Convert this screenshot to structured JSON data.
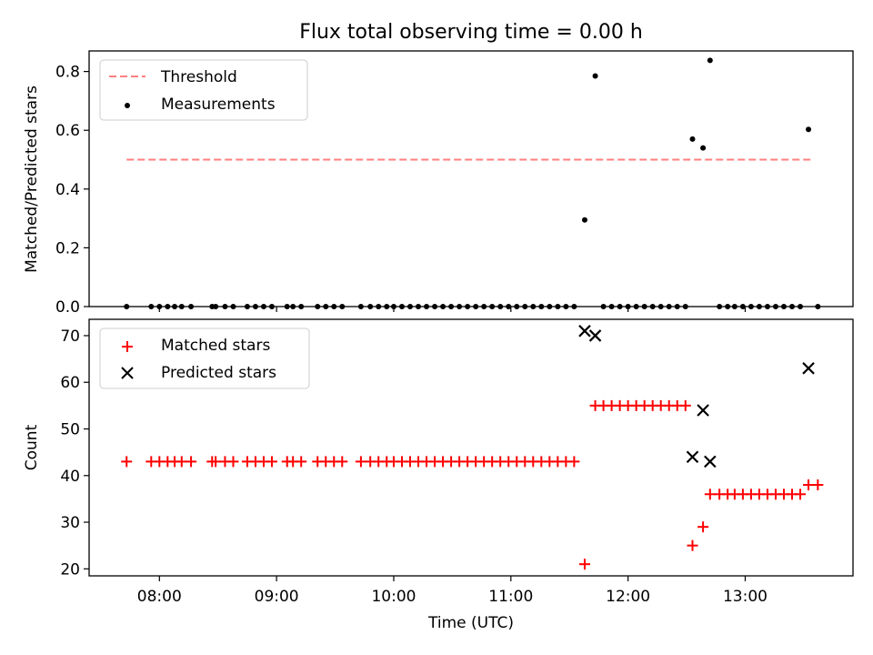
{
  "chart_data": [
    {
      "type": "scatter",
      "title": "Flux total observing time = 0.00 h",
      "xlabel": "",
      "ylabel": "Matched/Predicted stars",
      "ylim": [
        0,
        0.87
      ],
      "yticks": [
        0.0,
        0.2,
        0.4,
        0.6,
        0.8
      ],
      "ytick_labels": [
        "0.0",
        "0.2",
        "0.4",
        "0.6",
        "0.8"
      ],
      "legend_position": "top-left",
      "threshold": {
        "name": "Threshold",
        "value": 0.5,
        "x_start": 7.72,
        "x_end": 13.58,
        "color": "#ff7f7f"
      },
      "series": [
        {
          "name": "Measurements",
          "color": "#000000",
          "x": [
            7.72,
            7.93,
            8.0,
            8.07,
            8.13,
            8.19,
            8.27,
            8.45,
            8.48,
            8.56,
            8.63,
            8.75,
            8.82,
            8.89,
            8.96,
            9.09,
            9.14,
            9.21,
            9.35,
            9.42,
            9.49,
            9.56,
            9.72,
            9.8,
            9.87,
            9.94,
            10.0,
            10.07,
            10.14,
            10.21,
            10.28,
            10.35,
            10.42,
            10.49,
            10.56,
            10.63,
            10.7,
            10.77,
            10.84,
            10.91,
            10.98,
            11.05,
            11.12,
            11.19,
            11.26,
            11.33,
            11.4,
            11.47,
            11.54,
            11.63,
            11.72,
            11.79,
            11.86,
            11.93,
            12.0,
            12.07,
            12.14,
            12.21,
            12.28,
            12.35,
            12.42,
            12.49,
            12.55,
            12.64,
            12.7,
            12.78,
            12.85,
            12.91,
            12.98,
            13.05,
            13.12,
            13.19,
            13.26,
            13.33,
            13.4,
            13.47,
            13.54,
            13.62
          ],
          "y": [
            0,
            0,
            0,
            0,
            0,
            0,
            0,
            0,
            0,
            0,
            0,
            0,
            0,
            0,
            0,
            0,
            0,
            0,
            0,
            0,
            0,
            0,
            0,
            0,
            0,
            0,
            0,
            0,
            0,
            0,
            0,
            0,
            0,
            0,
            0,
            0,
            0,
            0,
            0,
            0,
            0,
            0,
            0,
            0,
            0,
            0,
            0,
            0,
            0,
            0.295,
            0.785,
            0,
            0,
            0,
            0,
            0,
            0,
            0,
            0,
            0,
            0,
            0,
            0.57,
            0.54,
            0.838,
            0,
            0,
            0,
            0,
            0,
            0,
            0,
            0,
            0,
            0,
            0,
            0.603,
            0
          ]
        }
      ]
    },
    {
      "type": "scatter",
      "xlabel": "Time (UTC)",
      "ylabel": "Count",
      "ylim": [
        18.5,
        73.5
      ],
      "yticks": [
        20,
        30,
        40,
        50,
        60,
        70
      ],
      "ytick_labels": [
        "20",
        "30",
        "40",
        "50",
        "60",
        "70"
      ],
      "xlim": [
        7.4,
        13.92
      ],
      "xticks": [
        8,
        9,
        10,
        11,
        12,
        13
      ],
      "xtick_labels": [
        "08:00",
        "09:00",
        "10:00",
        "11:00",
        "12:00",
        "13:00"
      ],
      "legend_position": "top-left",
      "series": [
        {
          "name": "Matched stars",
          "marker": "plus",
          "color": "#ff0000",
          "x": [
            7.72,
            7.93,
            8.0,
            8.07,
            8.13,
            8.19,
            8.27,
            8.45,
            8.48,
            8.56,
            8.63,
            8.75,
            8.82,
            8.89,
            8.96,
            9.09,
            9.14,
            9.21,
            9.35,
            9.42,
            9.49,
            9.56,
            9.72,
            9.8,
            9.87,
            9.94,
            10.0,
            10.07,
            10.14,
            10.21,
            10.28,
            10.35,
            10.42,
            10.49,
            10.56,
            10.63,
            10.7,
            10.77,
            10.84,
            10.91,
            10.98,
            11.05,
            11.12,
            11.19,
            11.26,
            11.33,
            11.4,
            11.47,
            11.54,
            11.63,
            11.72,
            11.79,
            11.86,
            11.93,
            12.0,
            12.07,
            12.14,
            12.21,
            12.28,
            12.35,
            12.42,
            12.49,
            12.55,
            12.64,
            12.7,
            12.78,
            12.85,
            12.91,
            12.98,
            13.05,
            13.12,
            13.19,
            13.26,
            13.33,
            13.4,
            13.47,
            13.54,
            13.62
          ],
          "y": [
            43,
            43,
            43,
            43,
            43,
            43,
            43,
            43,
            43,
            43,
            43,
            43,
            43,
            43,
            43,
            43,
            43,
            43,
            43,
            43,
            43,
            43,
            43,
            43,
            43,
            43,
            43,
            43,
            43,
            43,
            43,
            43,
            43,
            43,
            43,
            43,
            43,
            43,
            43,
            43,
            43,
            43,
            43,
            43,
            43,
            43,
            43,
            43,
            43,
            21,
            55,
            55,
            55,
            55,
            55,
            55,
            55,
            55,
            55,
            55,
            55,
            55,
            25,
            29,
            36,
            36,
            36,
            36,
            36,
            36,
            36,
            36,
            36,
            36,
            36,
            36,
            38,
            38
          ]
        },
        {
          "name": "Predicted stars",
          "marker": "x",
          "color": "#000000",
          "x": [
            11.63,
            11.72,
            12.55,
            12.64,
            12.7,
            13.54
          ],
          "y": [
            71,
            70,
            44,
            54,
            43,
            63
          ]
        }
      ]
    }
  ]
}
